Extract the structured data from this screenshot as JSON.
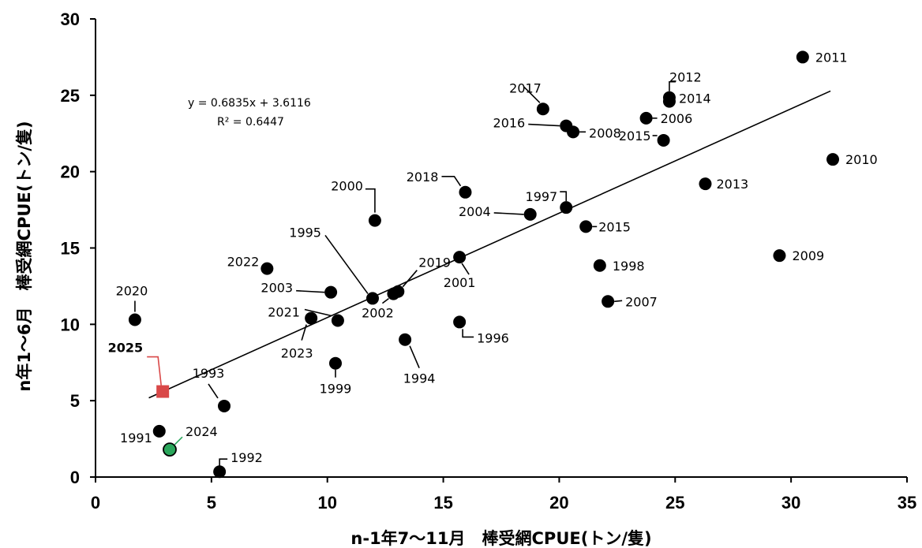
{
  "chart_data": {
    "type": "scatter",
    "xlabel": "n-1年7～11月　棒受網CPUE(トン/隻)",
    "ylabel": "n年1～6月　棒受網CPUE(トン/隻)",
    "xlim": [
      0,
      35
    ],
    "ylim": [
      0,
      30
    ],
    "x_ticks": [
      "0",
      "5",
      "10",
      "15",
      "20",
      "25",
      "30",
      "35"
    ],
    "y_ticks": [
      "0",
      "5",
      "10",
      "15",
      "20",
      "25",
      "30"
    ],
    "grid": false,
    "trendline": {
      "slope": 0.6835,
      "intercept": 3.6116,
      "x_range": [
        2.3,
        31.7
      ]
    },
    "equation": "y = 0.6835x + 3.6116",
    "r2": "R² = 0.6447",
    "colors": {
      "default": "#000000",
      "highlight_2025": "#d94848",
      "highlight_2024": "#2aa65b",
      "line": "#000000"
    },
    "points": [
      {
        "label": "1991",
        "x": 2.75,
        "y": 3.0
      },
      {
        "label": "1992",
        "x": 5.35,
        "y": 0.35
      },
      {
        "label": "1993",
        "x": 5.55,
        "y": 4.65
      },
      {
        "label": "1994",
        "x": 13.35,
        "y": 9.0
      },
      {
        "label": "1995",
        "x": 11.95,
        "y": 11.7
      },
      {
        "label": "1996",
        "x": 15.7,
        "y": 10.15
      },
      {
        "label": "1997",
        "x": 20.3,
        "y": 17.65
      },
      {
        "label": "1998",
        "x": 21.75,
        "y": 13.85
      },
      {
        "label": "1999",
        "x": 10.35,
        "y": 7.45
      },
      {
        "label": "2000",
        "x": 12.05,
        "y": 16.8
      },
      {
        "label": "2001",
        "x": 15.7,
        "y": 14.4
      },
      {
        "label": "2002",
        "x": 12.85,
        "y": 12.0
      },
      {
        "label": "2003",
        "x": 10.15,
        "y": 12.1
      },
      {
        "label": "2004",
        "x": 18.75,
        "y": 17.2
      },
      {
        "label": "2006",
        "x": 23.75,
        "y": 23.5
      },
      {
        "label": "2007",
        "x": 22.1,
        "y": 11.5
      },
      {
        "label": "2008",
        "x": 20.6,
        "y": 22.6
      },
      {
        "label": "2009",
        "x": 29.5,
        "y": 14.5
      },
      {
        "label": "2010",
        "x": 31.8,
        "y": 20.8
      },
      {
        "label": "2011",
        "x": 30.5,
        "y": 27.5
      },
      {
        "label": "2012",
        "x": 24.75,
        "y": 24.85
      },
      {
        "label": "2013",
        "x": 26.3,
        "y": 19.2
      },
      {
        "label": "2014",
        "x": 24.75,
        "y": 24.6
      },
      {
        "label": "2015",
        "x": 21.15,
        "y": 16.4
      },
      {
        "label": "2015",
        "x": 24.5,
        "y": 22.05
      },
      {
        "label": "2016",
        "x": 20.3,
        "y": 23.0
      },
      {
        "label": "2017",
        "x": 19.3,
        "y": 24.1
      },
      {
        "label": "2018",
        "x": 15.95,
        "y": 18.65
      },
      {
        "label": "2019",
        "x": 13.05,
        "y": 12.15
      },
      {
        "label": "2020",
        "x": 1.7,
        "y": 10.3
      },
      {
        "label": "2021",
        "x": 10.45,
        "y": 10.25
      },
      {
        "label": "2022",
        "x": 7.4,
        "y": 13.65
      },
      {
        "label": "2023",
        "x": 9.3,
        "y": 10.4
      },
      {
        "label": "2024",
        "x": 3.2,
        "y": 1.8,
        "style": "green-circle"
      },
      {
        "label": "2025",
        "x": 2.9,
        "y": 5.6,
        "style": "red-square"
      }
    ]
  }
}
